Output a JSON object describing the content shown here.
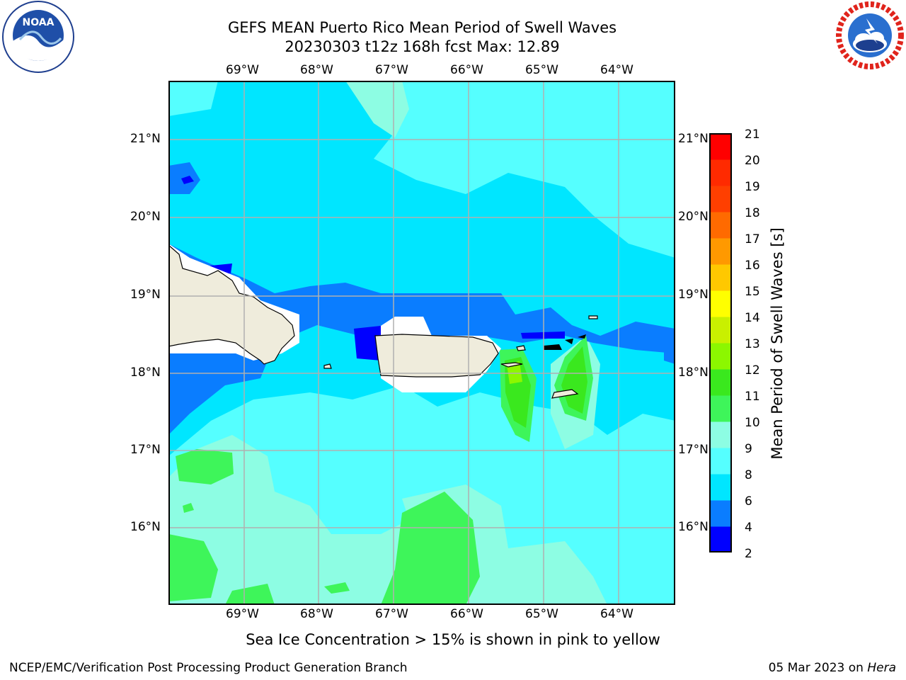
{
  "title_line1": "GEFS MEAN Puerto Rico Mean Period of Swell Waves",
  "title_line2": "20230303 t12z 168h fcst   Max: 12.89",
  "lon_labels": [
    "69°W",
    "68°W",
    "67°W",
    "66°W",
    "65°W",
    "64°W"
  ],
  "lat_labels": [
    "21°N",
    "20°N",
    "19°N",
    "18°N",
    "17°N",
    "16°N"
  ],
  "colorbar": {
    "ticks": [
      "21",
      "20",
      "19",
      "18",
      "17",
      "16",
      "15",
      "14",
      "13",
      "12",
      "11",
      "10",
      "9",
      "8",
      "6",
      "4",
      "2"
    ],
    "label": "Mean Period of Swell Waves [s]",
    "colors": [
      "#0000ff",
      "#0a7dff",
      "#00e6ff",
      "#55ffff",
      "#8dfde3",
      "#3ef55a",
      "#3ae81e",
      "#8cf700",
      "#c9f000",
      "#ffff00",
      "#ffc800",
      "#ff9900",
      "#ff6a00",
      "#ff3f00",
      "#ff2a00",
      "#ff0000"
    ]
  },
  "footnote": "Sea Ice Concentration > 15% is shown in pink to yellow",
  "credit": "NCEP/EMC/Verification Post Processing Product Generation Branch",
  "date_prefix": "05 Mar 2023 on ",
  "date_host": "Hera",
  "logos": {
    "left": "noaa-logo",
    "right": "nws-logo"
  }
}
